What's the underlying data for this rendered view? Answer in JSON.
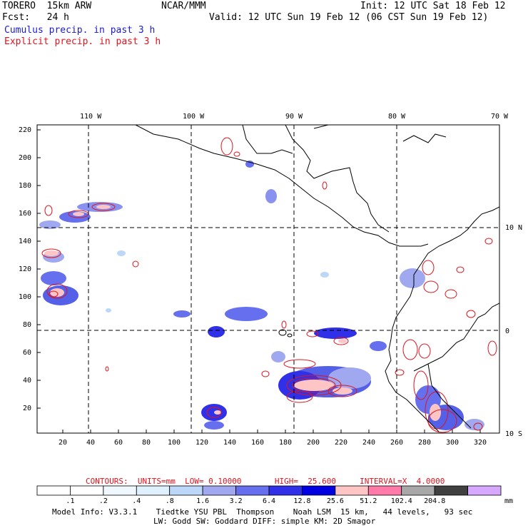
{
  "header": {
    "model": "TORERO  15km ARW",
    "org": "NCAR/MMM",
    "init": "Init: 12 UTC Sat 18 Feb 12",
    "fcst": "Fcst:   24 h",
    "valid": "Valid: 12 UTC Sun 19 Feb 12 (06 CST Sun 19 Feb 12)",
    "line_blue": "Cumulus precip. in past 3 h",
    "line_red": "Explicit precip. in past 3 h"
  },
  "axes": {
    "top_lon_labels": [
      "110 W",
      "100 W",
      "90 W",
      "80 W",
      "70 W"
    ],
    "right_lat_labels": [
      "10 N",
      "0",
      "10 S"
    ],
    "left_ticks": [
      "220",
      "200",
      "180",
      "160",
      "140",
      "120",
      "100",
      "80",
      "60",
      "40",
      "20"
    ],
    "bottom_ticks": [
      "20",
      "40",
      "60",
      "80",
      "100",
      "120",
      "140",
      "160",
      "180",
      "200",
      "220",
      "240",
      "260",
      "280",
      "300",
      "320"
    ]
  },
  "contours_line": {
    "label": "CONTOURS:  UNITS=mm  LOW= 0.10000       HIGH=  25.600     INTERVAL=X  4.0000"
  },
  "colorbar": {
    "labels": [
      ".1",
      ".2",
      ".4",
      ".8",
      "1.6",
      "3.2",
      "6.4",
      "12.8",
      "25.6",
      "51.2",
      "102.4",
      "204.8"
    ],
    "unit": "mm",
    "colors": [
      "#ffffff",
      "#ffffff",
      "#f0f8ff",
      "#dff0ff",
      "#bcd7f7",
      "#a0a8f0",
      "#6670ee",
      "#3030e8",
      "#0000e0",
      "#ffc4c4",
      "#ff7aa8",
      "#a8a8a8",
      "#404040",
      "#d7a8ff"
    ]
  },
  "footer": {
    "line1": "Model Info: V3.3.1    Tiedtke YSU PBL  Thompson    Noah LSM  15 km,   44 levels,   93 sec",
    "line2": "LW: Godd SW: Goddard DIFF: simple KM: 2D Smagor"
  }
}
